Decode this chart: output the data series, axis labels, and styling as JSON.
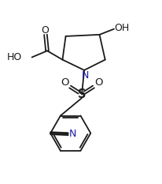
{
  "bg_color": "#ffffff",
  "line_color": "#1a1a1a",
  "text_color": "#1a1a1a",
  "blue_color": "#1a1aaa",
  "figsize": [
    2.06,
    2.33
  ],
  "dpi": 100,
  "xlim": [
    0,
    10
  ],
  "ylim": [
    0,
    11.3
  ]
}
